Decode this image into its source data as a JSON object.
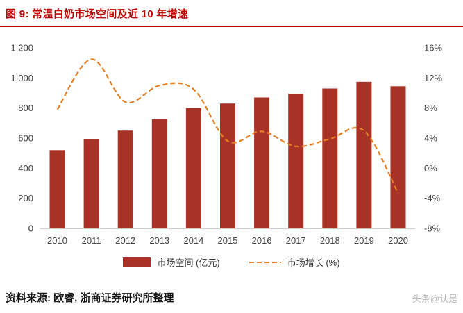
{
  "header": {
    "title": "图 9: 常温白奶市场空间及近 10 年增速"
  },
  "chart_data": {
    "type": "bar",
    "title": "常温白奶市场空间及近 10 年增速",
    "categories": [
      "2010",
      "2011",
      "2012",
      "2013",
      "2014",
      "2015",
      "2016",
      "2017",
      "2018",
      "2019",
      "2020"
    ],
    "series": [
      {
        "name": "市场空间 (亿元)",
        "type": "bar",
        "axis": "left",
        "values": [
          520,
          595,
          650,
          725,
          800,
          830,
          870,
          895,
          930,
          975,
          945
        ],
        "color": "#A93226"
      },
      {
        "name": "市场增长 (%)",
        "type": "line",
        "axis": "right",
        "style": "dashed",
        "values": [
          7.8,
          14.5,
          8.8,
          11.0,
          10.5,
          3.6,
          4.9,
          2.9,
          3.9,
          5.0,
          -3.3
        ],
        "color": "#E67E22"
      }
    ],
    "left_axis": {
      "min": 0,
      "max": 1200,
      "step": 200,
      "tick_labels": [
        "0",
        "200",
        "400",
        "600",
        "800",
        "1,000",
        "1,200"
      ]
    },
    "right_axis": {
      "min": -8,
      "max": 16,
      "step": 4,
      "tick_labels": [
        "-8%",
        "-4%",
        "0%",
        "4%",
        "8%",
        "12%",
        "16%"
      ]
    },
    "grid": false,
    "legend_position": "bottom"
  },
  "legend": {
    "bar_label": "市场空间 (亿元)",
    "line_label": "市场增长 (%)"
  },
  "footer": {
    "source": "资料来源: 欧睿, 浙商证券研究所整理",
    "watermark": "头条@认是"
  },
  "colors": {
    "title_red": "#c00000",
    "bar": "#A93226",
    "line": "#E67E22"
  }
}
